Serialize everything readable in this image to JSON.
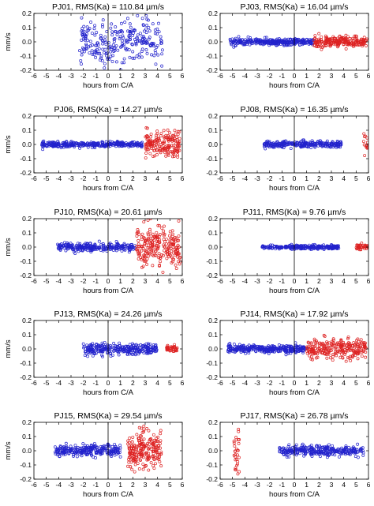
{
  "figure": {
    "colors": {
      "blue": "#2222cc",
      "red": "#dd2222",
      "axis": "#000000"
    }
  },
  "chart_data": [
    {
      "type": "scatter",
      "title": "PJ01, RMS(Ka) = 110.84 µm/s",
      "xlabel": "hours from C/A",
      "ylabel": "mm/s",
      "xlim": [
        -6,
        6
      ],
      "ylim": [
        -0.2,
        0.2
      ],
      "xticks": [
        "-6",
        "-5",
        "-4",
        "-3",
        "-2",
        "-1",
        "0",
        "1",
        "2",
        "3",
        "4",
        "5",
        "6"
      ],
      "yticks": [
        "-0.2",
        "-0.1",
        "0.0",
        "0.1",
        "0.2"
      ],
      "series": [
        {
          "color": "blue",
          "x_range": [
            -2.3,
            4.4
          ],
          "spread": 0.085,
          "n": 260,
          "seed": 11
        }
      ]
    },
    {
      "type": "scatter",
      "title": "PJ03, RMS(Ka) = 16.04 µm/s",
      "xlabel": "hours from C/A",
      "ylabel": "",
      "xlim": [
        -6,
        6
      ],
      "ylim": [
        -0.2,
        0.2
      ],
      "xticks": [
        "-6",
        "-5",
        "-4",
        "-3",
        "-2",
        "-1",
        "0",
        "1",
        "2",
        "3",
        "4",
        "5",
        "6"
      ],
      "yticks": [
        "-0.2",
        "-0.1",
        "0.0",
        "0.1",
        "0.2"
      ],
      "series": [
        {
          "color": "blue",
          "x_range": [
            -5.2,
            1.6
          ],
          "spread": 0.012,
          "n": 300,
          "seed": 21
        },
        {
          "color": "red",
          "x_range": [
            1.6,
            5.9
          ],
          "spread": 0.018,
          "n": 220,
          "seed": 22
        }
      ]
    },
    {
      "type": "scatter",
      "title": "PJ06, RMS(Ka) = 14.27 µm/s",
      "xlabel": "hours from C/A",
      "ylabel": "mm/s",
      "xlim": [
        -6,
        6
      ],
      "ylim": [
        -0.2,
        0.2
      ],
      "xticks": [
        "-6",
        "-5",
        "-4",
        "-3",
        "-2",
        "-1",
        "0",
        "1",
        "2",
        "3",
        "4",
        "5",
        "6"
      ],
      "yticks": [
        "-0.2",
        "-0.1",
        "0.0",
        "0.1",
        "0.2"
      ],
      "series": [
        {
          "color": "blue",
          "x_range": [
            -5.4,
            2.8
          ],
          "spread": 0.01,
          "n": 320,
          "seed": 31
        },
        {
          "color": "red",
          "x_range": [
            3.0,
            5.8
          ],
          "spread": 0.05,
          "n": 180,
          "seed": 32
        }
      ]
    },
    {
      "type": "scatter",
      "title": "PJ08, RMS(Ka) = 16.35 µm/s",
      "xlabel": "hours from C/A",
      "ylabel": "",
      "xlim": [
        -6,
        6
      ],
      "ylim": [
        -0.2,
        0.2
      ],
      "xticks": [
        "-6",
        "-5",
        "-4",
        "-3",
        "-2",
        "-1",
        "0",
        "1",
        "2",
        "3",
        "4",
        "5",
        "6"
      ],
      "yticks": [
        "-0.2",
        "-0.1",
        "0.0",
        "0.1",
        "0.2"
      ],
      "series": [
        {
          "color": "blue",
          "x_range": [
            -2.5,
            3.8
          ],
          "spread": 0.012,
          "n": 260,
          "seed": 41
        },
        {
          "color": "red",
          "x_range": [
            5.6,
            5.95
          ],
          "spread": 0.04,
          "n": 14,
          "seed": 42
        }
      ]
    },
    {
      "type": "scatter",
      "title": "PJ10, RMS(Ka) = 20.61 µm/s",
      "xlabel": "hours from C/A",
      "ylabel": "mm/s",
      "xlim": [
        -6,
        6
      ],
      "ylim": [
        -0.2,
        0.2
      ],
      "xticks": [
        "-6",
        "-5",
        "-4",
        "-3",
        "-2",
        "-1",
        "0",
        "1",
        "2",
        "3",
        "4",
        "5",
        "6"
      ],
      "yticks": [
        "-0.2",
        "-0.1",
        "0.0",
        "0.1",
        "0.2"
      ],
      "series": [
        {
          "color": "blue",
          "x_range": [
            -4.1,
            2.2
          ],
          "spread": 0.014,
          "n": 260,
          "seed": 51
        },
        {
          "color": "red",
          "x_range": [
            2.3,
            5.9
          ],
          "spread": 0.07,
          "n": 230,
          "seed": 52
        }
      ]
    },
    {
      "type": "scatter",
      "title": "PJ11, RMS(Ka) = 9.76 µm/s",
      "xlabel": "hours from C/A",
      "ylabel": "",
      "xlim": [
        -6,
        6
      ],
      "ylim": [
        -0.2,
        0.2
      ],
      "xticks": [
        "-6",
        "-5",
        "-4",
        "-3",
        "-2",
        "-1",
        "0",
        "1",
        "2",
        "3",
        "4",
        "5",
        "6"
      ],
      "yticks": [
        "-0.2",
        "-0.1",
        "0.0",
        "0.1",
        "0.2"
      ],
      "series": [
        {
          "color": "blue",
          "x_range": [
            -2.6,
            3.6
          ],
          "spread": 0.007,
          "n": 260,
          "seed": 61
        },
        {
          "color": "red",
          "x_range": [
            5.0,
            5.95
          ],
          "spread": 0.012,
          "n": 40,
          "seed": 62
        }
      ]
    },
    {
      "type": "scatter",
      "title": "PJ13, RMS(Ka) = 24.26 µm/s",
      "xlabel": "hours from C/A",
      "ylabel": "mm/s",
      "xlim": [
        -6,
        6
      ],
      "ylim": [
        -0.2,
        0.2
      ],
      "xticks": [
        "-6",
        "-5",
        "-4",
        "-3",
        "-2",
        "-1",
        "0",
        "1",
        "2",
        "3",
        "4",
        "5",
        "6"
      ],
      "yticks": [
        "-0.2",
        "-0.1",
        "0.0",
        "0.1",
        "0.2"
      ],
      "series": [
        {
          "color": "blue",
          "x_range": [
            -2.0,
            4.0
          ],
          "spread": 0.02,
          "n": 280,
          "seed": 71
        },
        {
          "color": "red",
          "x_range": [
            4.7,
            5.6
          ],
          "spread": 0.01,
          "n": 40,
          "seed": 72
        }
      ]
    },
    {
      "type": "scatter",
      "title": "PJ14, RMS(Ka) = 17.92 µm/s",
      "xlabel": "hours from C/A",
      "ylabel": "",
      "xlim": [
        -6,
        6
      ],
      "ylim": [
        -0.2,
        0.2
      ],
      "xticks": [
        "-6",
        "-5",
        "-4",
        "-3",
        "-2",
        "-1",
        "0",
        "1",
        "2",
        "3",
        "4",
        "5",
        "6"
      ],
      "yticks": [
        "-0.2",
        "-0.1",
        "0.0",
        "0.1",
        "0.2"
      ],
      "series": [
        {
          "color": "blue",
          "x_range": [
            -5.4,
            1.0
          ],
          "spread": 0.014,
          "n": 320,
          "seed": 81
        },
        {
          "color": "red",
          "x_range": [
            1.0,
            5.8
          ],
          "spread": 0.035,
          "n": 260,
          "seed": 82
        }
      ]
    },
    {
      "type": "scatter",
      "title": "PJ15, RMS(Ka) = 29.54 µm/s",
      "xlabel": "hours from C/A",
      "ylabel": "mm/s",
      "xlim": [
        -6,
        6
      ],
      "ylim": [
        -0.2,
        0.2
      ],
      "xticks": [
        "-6",
        "-5",
        "-4",
        "-3",
        "-2",
        "-1",
        "0",
        "1",
        "2",
        "3",
        "4",
        "5",
        "6"
      ],
      "yticks": [
        "-0.2",
        "-0.1",
        "0.0",
        "0.1",
        "0.2"
      ],
      "series": [
        {
          "color": "blue",
          "x_range": [
            -4.3,
            1.0
          ],
          "spread": 0.02,
          "n": 260,
          "seed": 91
        },
        {
          "color": "red",
          "x_range": [
            1.6,
            4.3
          ],
          "spread": 0.065,
          "n": 220,
          "seed": 92
        }
      ]
    },
    {
      "type": "scatter",
      "title": "PJ17, RMS(Ka) = 26.78 µm/s",
      "xlabel": "hours from C/A",
      "ylabel": "",
      "xlim": [
        -6,
        6
      ],
      "ylim": [
        -0.2,
        0.2
      ],
      "xticks": [
        "-6",
        "-5",
        "-4",
        "-3",
        "-2",
        "-1",
        "0",
        "1",
        "2",
        "3",
        "4",
        "5",
        "6"
      ],
      "yticks": [
        "-0.2",
        "-0.1",
        "0.0",
        "0.1",
        "0.2"
      ],
      "series": [
        {
          "color": "blue",
          "x_range": [
            -1.2,
            5.6
          ],
          "spread": 0.018,
          "n": 300,
          "seed": 101
        },
        {
          "color": "red",
          "x_range": [
            -4.9,
            -4.45
          ],
          "spread": 0.07,
          "n": 30,
          "seed": 102
        }
      ]
    }
  ]
}
